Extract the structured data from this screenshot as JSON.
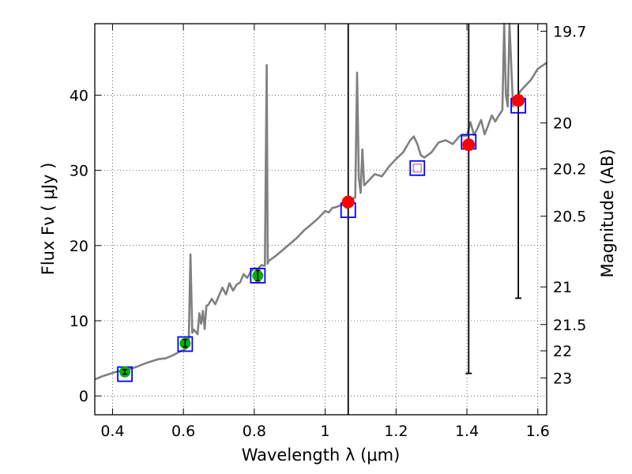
{
  "chart_data": {
    "type": "line",
    "xlabel": "Wavelength  λ (μm)",
    "ylabel": "Flux  Fν  ( μJy )",
    "y2label": "Magnitude (AB)",
    "xlim": [
      0.35,
      1.625
    ],
    "ylim": [
      -2.5,
      49.5
    ],
    "x_ticks": [
      0.4,
      0.6,
      0.8,
      1.0,
      1.2,
      1.4,
      1.6
    ],
    "x_tick_labels": [
      "0.4",
      "0.6",
      "0.8",
      "1",
      "1.2",
      "1.4",
      "1.6"
    ],
    "y_ticks": [
      0,
      10,
      20,
      30,
      40
    ],
    "y_tick_labels": [
      "0",
      "10",
      "20",
      "30",
      "40"
    ],
    "mag_ticks": [
      {
        "flux": 48.5,
        "label": "19.7"
      },
      {
        "flux": 36.3,
        "label": "20"
      },
      {
        "flux": 30.2,
        "label": "20.2"
      },
      {
        "flux": 23.9,
        "label": "20.5"
      },
      {
        "flux": 14.5,
        "label": "21"
      },
      {
        "flux": 9.5,
        "label": "21.5"
      },
      {
        "flux": 6.0,
        "label": "22"
      },
      {
        "flux": 2.4,
        "label": "23"
      }
    ],
    "grid": true,
    "colors": {
      "spectrum": "#808080",
      "model_box": "#0000ff",
      "photometry_red": "#ff0000",
      "photometry_green": "#00b000",
      "box_fill": "#ffffff"
    },
    "spectrum": {
      "x": [
        0.35,
        0.37,
        0.39,
        0.41,
        0.43,
        0.45,
        0.47,
        0.49,
        0.51,
        0.53,
        0.55,
        0.57,
        0.59,
        0.6,
        0.61,
        0.615,
        0.62,
        0.625,
        0.63,
        0.64,
        0.645,
        0.65,
        0.655,
        0.66,
        0.665,
        0.67,
        0.68,
        0.69,
        0.7,
        0.71,
        0.72,
        0.73,
        0.74,
        0.75,
        0.76,
        0.77,
        0.78,
        0.79,
        0.8,
        0.81,
        0.82,
        0.83,
        0.835,
        0.838,
        0.84,
        0.845,
        0.86,
        0.88,
        0.9,
        0.92,
        0.94,
        0.96,
        0.98,
        1.0,
        1.01,
        1.02,
        1.03,
        1.04,
        1.05,
        1.06,
        1.07,
        1.08,
        1.085,
        1.09,
        1.095,
        1.1,
        1.105,
        1.11,
        1.12,
        1.14,
        1.16,
        1.18,
        1.2,
        1.22,
        1.24,
        1.25,
        1.26,
        1.27,
        1.28,
        1.3,
        1.32,
        1.34,
        1.36,
        1.38,
        1.4,
        1.41,
        1.42,
        1.43,
        1.44,
        1.45,
        1.46,
        1.47,
        1.48,
        1.49,
        1.5,
        1.505,
        1.51,
        1.515,
        1.52,
        1.53,
        1.54,
        1.55,
        1.56,
        1.58,
        1.6,
        1.625
      ],
      "y": [
        2.2,
        2.6,
        2.9,
        3.2,
        3.4,
        3.6,
        3.9,
        4.3,
        4.6,
        4.9,
        5.0,
        5.4,
        5.9,
        6.1,
        6.4,
        7.2,
        18.8,
        8.4,
        8.8,
        8.2,
        11.0,
        9.6,
        11.3,
        8.9,
        12.0,
        12.1,
        12.9,
        12.2,
        13.3,
        14.4,
        13.5,
        15.0,
        14.0,
        14.8,
        15.1,
        16.2,
        15.7,
        16.5,
        17.0,
        16.9,
        17.4,
        17.3,
        44.0,
        17.6,
        17.9,
        18.1,
        18.6,
        19.4,
        20.2,
        21.0,
        22.0,
        22.8,
        23.6,
        24.6,
        24.4,
        25.0,
        25.1,
        25.3,
        25.4,
        25.0,
        25.2,
        26.3,
        26.4,
        43.0,
        29.0,
        27.0,
        32.8,
        28.0,
        28.5,
        29.5,
        29.2,
        30.5,
        31.5,
        32.4,
        34.0,
        34.5,
        33.5,
        32.0,
        31.7,
        32.4,
        33.7,
        34.0,
        33.5,
        34.6,
        34.6,
        36.4,
        34.7,
        35.6,
        36.7,
        34.8,
        36.0,
        37.3,
        36.5,
        37.3,
        38.0,
        49.5,
        40.0,
        38.5,
        49.5,
        38.5,
        39.5,
        40.5,
        41.0,
        42.0,
        43.5,
        44.3
      ]
    },
    "model_boxes": [
      {
        "x": 0.435,
        "y": 2.9
      },
      {
        "x": 0.605,
        "y": 6.9
      },
      {
        "x": 0.81,
        "y": 16.0
      },
      {
        "x": 1.065,
        "y": 24.7
      },
      {
        "x": 1.26,
        "y": 30.3
      },
      {
        "x": 1.405,
        "y": 33.8
      },
      {
        "x": 1.545,
        "y": 38.6
      }
    ],
    "photometry_red": [
      {
        "x": 1.065,
        "y": 25.8,
        "yerr_low": -2.5,
        "yerr_high": 49.5
      },
      {
        "x": 1.405,
        "y": 33.4,
        "yerr_low": 3.0,
        "yerr_high": 49.5
      },
      {
        "x": 1.545,
        "y": 39.3,
        "yerr_low": 13.0,
        "yerr_high": 49.5
      }
    ],
    "photometry_green": [
      {
        "x": 0.435,
        "y": 3.2,
        "yerr_low": 2.9,
        "yerr_high": 3.5
      },
      {
        "x": 0.605,
        "y": 7.0,
        "yerr_low": 6.5,
        "yerr_high": 7.5
      },
      {
        "x": 0.81,
        "y": 16.0,
        "yerr_low": 15.3,
        "yerr_high": 16.7
      }
    ],
    "upper_limit_marker": {
      "x": 1.26,
      "y": 30.3,
      "color": "#c080c0"
    }
  }
}
